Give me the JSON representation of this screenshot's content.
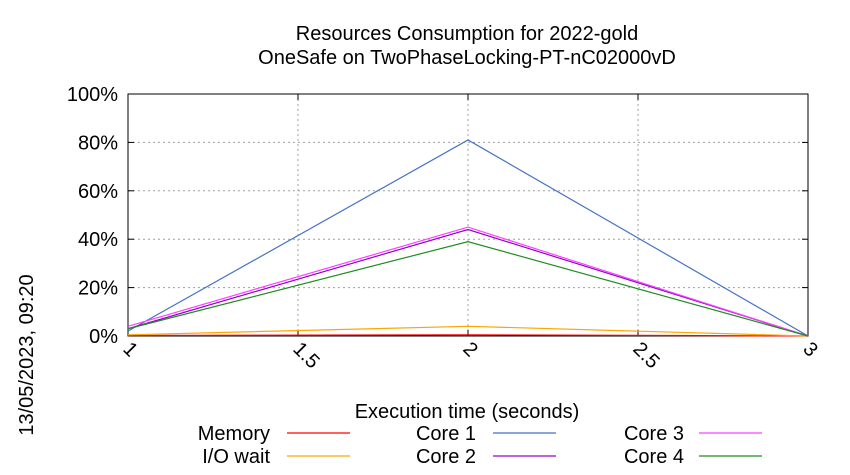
{
  "chart_data": {
    "type": "line",
    "title": "Resources Consumption for 2022-gold",
    "subtitle": "OneSafe on TwoPhaseLocking-PT-nC02000vD",
    "xlabel": "Execution time (seconds)",
    "ylabel": "",
    "side_label": "13/05/2023, 09:20",
    "xlim": [
      1,
      3
    ],
    "ylim": [
      0,
      100
    ],
    "x_ticks": [
      "1",
      "1.5",
      "2",
      "2.5",
      "3"
    ],
    "y_ticks": [
      "0%",
      "20%",
      "40%",
      "60%",
      "80%",
      "100%"
    ],
    "grid": true,
    "legend_position": "bottom",
    "x": [
      1,
      2,
      3
    ],
    "series": [
      {
        "name": "Memory",
        "color": "#ff0000",
        "values": [
          0.2,
          0.5,
          0
        ]
      },
      {
        "name": "I/O wait",
        "color": "#ffa500",
        "values": [
          0.5,
          4,
          0
        ]
      },
      {
        "name": "Core 1",
        "color": "#4472c4",
        "values": [
          2,
          81,
          0
        ]
      },
      {
        "name": "Core 2",
        "color": "#9400d3",
        "values": [
          3,
          44,
          0
        ]
      },
      {
        "name": "Core 3",
        "color": "#ff40ff",
        "values": [
          4,
          45,
          0
        ]
      },
      {
        "name": "Core 4",
        "color": "#228b22",
        "values": [
          3,
          39,
          0
        ]
      }
    ]
  }
}
